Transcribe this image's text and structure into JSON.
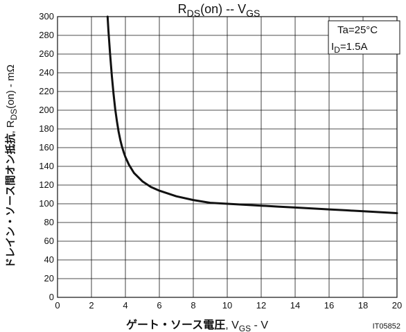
{
  "chart_data": {
    "type": "line",
    "title": {
      "prefix": "R",
      "sub": "DS",
      "suffix": "(on)  --  V",
      "sub2": "GS"
    },
    "xlabel": {
      "jp": "ゲート・ソース電圧",
      "sep": ", V",
      "sub": "GS",
      "unit": " - V"
    },
    "ylabel": {
      "jp": "ドレイン・ソース間オン抵抗",
      "sep": ", R",
      "sub": "DS",
      "mid": "(on)",
      "unit": " - mΩ"
    },
    "xlim": [
      0,
      20
    ],
    "ylim": [
      0,
      300
    ],
    "x_ticks": [
      "0",
      "2",
      "4",
      "6",
      "8",
      "10",
      "12",
      "14",
      "16",
      "18",
      "20"
    ],
    "y_ticks": [
      "0",
      "20",
      "40",
      "60",
      "80",
      "100",
      "120",
      "140",
      "160",
      "180",
      "200",
      "220",
      "240",
      "260",
      "280",
      "300"
    ],
    "grid": true,
    "annotation": {
      "line1": "Ta=25°C",
      "line2_prefix": "I",
      "line2_sub": "D",
      "line2_suffix": "=1.5A",
      "placement": "top-right"
    },
    "code": "IT05852",
    "series": [
      {
        "color": "#111111",
        "x": [
          2.95,
          3.0,
          3.1,
          3.2,
          3.3,
          3.4,
          3.5,
          3.6,
          3.7,
          3.8,
          3.9,
          4.0,
          4.2,
          4.5,
          5.0,
          5.5,
          6.0,
          7.0,
          8.0,
          9.0,
          10.0,
          11.0,
          12.0,
          13.0,
          14.0,
          15.0,
          16.0,
          17.0,
          18.0,
          19.0,
          20.0
        ],
        "y": [
          300,
          285,
          260,
          237,
          218,
          201,
          188,
          177,
          168,
          161,
          155,
          150,
          142,
          133,
          124,
          118,
          114,
          108,
          104,
          101,
          100,
          99,
          98,
          97,
          96,
          95,
          94,
          93,
          92,
          91,
          90
        ]
      }
    ]
  }
}
